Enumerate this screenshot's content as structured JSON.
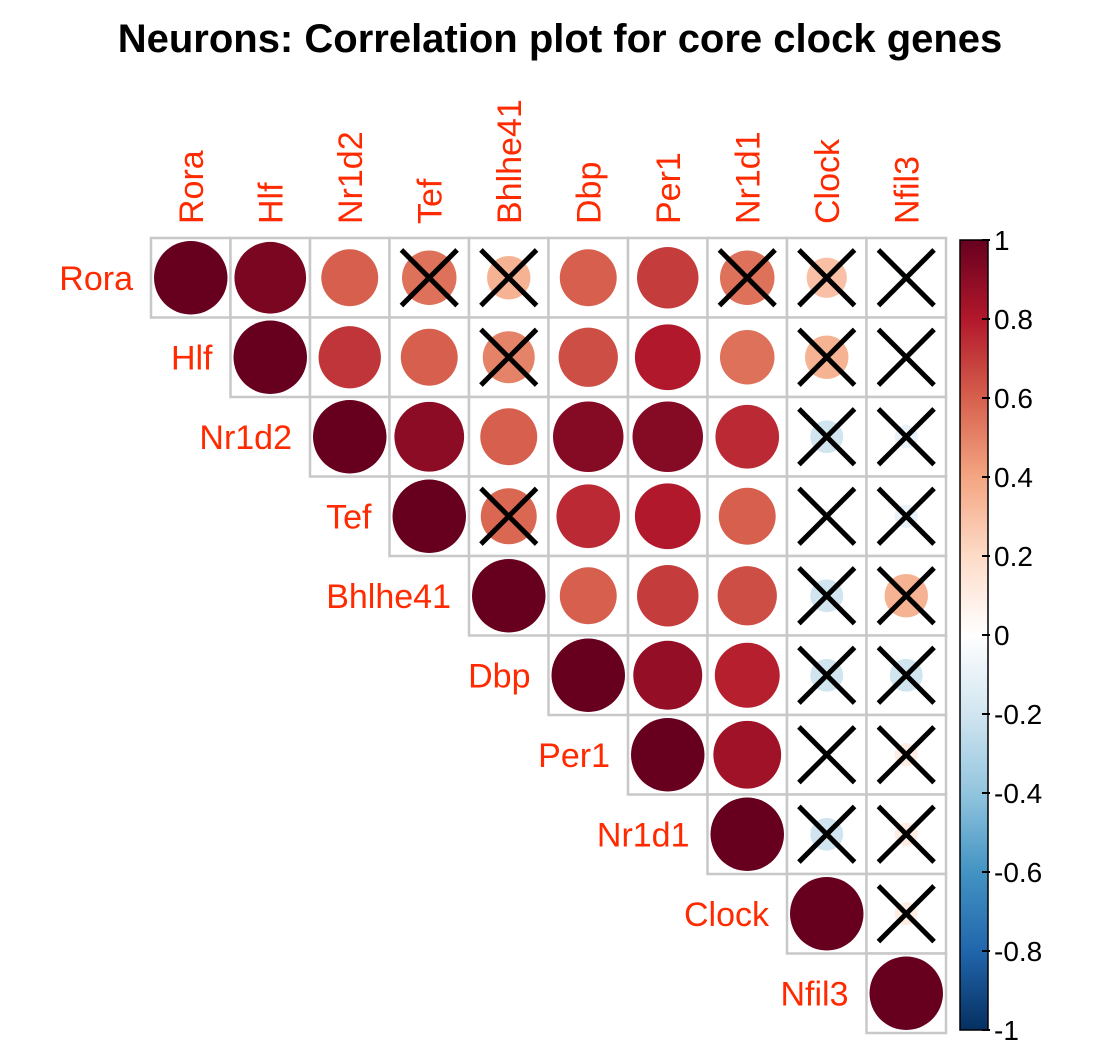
{
  "chart_data": {
    "type": "heatmap",
    "title": "Neurons: Correlation plot for core clock genes",
    "genes": [
      "Rora",
      "Hlf",
      "Nr1d2",
      "Tef",
      "Bhlhe41",
      "Dbp",
      "Per1",
      "Nr1d1",
      "Clock",
      "Nfil3"
    ],
    "matrix_shape": "upper-triangle",
    "glyph": "circle",
    "insignificant_marker": "cross",
    "label_color": "#ff2a00",
    "colorbar": {
      "range": [
        -1,
        1
      ],
      "ticks": [
        "1",
        "0.8",
        "0.6",
        "0.4",
        "0.2",
        "0",
        "-0.2",
        "-0.4",
        "-0.6",
        "-0.8",
        "-1"
      ],
      "tick_values": [
        1,
        0.8,
        0.6,
        0.4,
        0.2,
        0,
        -0.2,
        -0.4,
        -0.6,
        -0.8,
        -1
      ],
      "colors": [
        "#67001f",
        "#b2182b",
        "#d6604d",
        "#f4a582",
        "#fddbc7",
        "#ffffff",
        "#d1e5f0",
        "#92c5de",
        "#4393c3",
        "#2166ac",
        "#053061"
      ]
    },
    "cells": [
      {
        "row": "Rora",
        "col": "Rora",
        "value": 1.0,
        "crossed": false
      },
      {
        "row": "Rora",
        "col": "Hlf",
        "value": 0.95,
        "crossed": false
      },
      {
        "row": "Rora",
        "col": "Nr1d2",
        "value": 0.6,
        "crossed": false
      },
      {
        "row": "Rora",
        "col": "Tef",
        "value": 0.55,
        "crossed": true
      },
      {
        "row": "Rora",
        "col": "Bhlhe41",
        "value": 0.35,
        "crossed": true
      },
      {
        "row": "Rora",
        "col": "Dbp",
        "value": 0.6,
        "crossed": false
      },
      {
        "row": "Rora",
        "col": "Per1",
        "value": 0.7,
        "crossed": false
      },
      {
        "row": "Rora",
        "col": "Nr1d1",
        "value": 0.55,
        "crossed": true
      },
      {
        "row": "Rora",
        "col": "Clock",
        "value": 0.3,
        "crossed": true
      },
      {
        "row": "Rora",
        "col": "Nfil3",
        "value": -0.05,
        "crossed": true
      },
      {
        "row": "Hlf",
        "col": "Hlf",
        "value": 1.0,
        "crossed": false
      },
      {
        "row": "Hlf",
        "col": "Nr1d2",
        "value": 0.72,
        "crossed": false
      },
      {
        "row": "Hlf",
        "col": "Tef",
        "value": 0.6,
        "crossed": false
      },
      {
        "row": "Hlf",
        "col": "Bhlhe41",
        "value": 0.5,
        "crossed": true
      },
      {
        "row": "Hlf",
        "col": "Dbp",
        "value": 0.65,
        "crossed": false
      },
      {
        "row": "Hlf",
        "col": "Per1",
        "value": 0.8,
        "crossed": false
      },
      {
        "row": "Hlf",
        "col": "Nr1d1",
        "value": 0.55,
        "crossed": false
      },
      {
        "row": "Hlf",
        "col": "Clock",
        "value": 0.35,
        "crossed": true
      },
      {
        "row": "Hlf",
        "col": "Nfil3",
        "value": 0.0,
        "crossed": true
      },
      {
        "row": "Nr1d2",
        "col": "Nr1d2",
        "value": 1.0,
        "crossed": false
      },
      {
        "row": "Nr1d2",
        "col": "Tef",
        "value": 0.9,
        "crossed": false
      },
      {
        "row": "Nr1d2",
        "col": "Bhlhe41",
        "value": 0.6,
        "crossed": false
      },
      {
        "row": "Nr1d2",
        "col": "Dbp",
        "value": 0.92,
        "crossed": false
      },
      {
        "row": "Nr1d2",
        "col": "Per1",
        "value": 0.92,
        "crossed": false
      },
      {
        "row": "Nr1d2",
        "col": "Nr1d1",
        "value": 0.75,
        "crossed": false
      },
      {
        "row": "Nr1d2",
        "col": "Clock",
        "value": -0.2,
        "crossed": true
      },
      {
        "row": "Nr1d2",
        "col": "Nfil3",
        "value": -0.1,
        "crossed": true
      },
      {
        "row": "Tef",
        "col": "Tef",
        "value": 1.0,
        "crossed": false
      },
      {
        "row": "Tef",
        "col": "Bhlhe41",
        "value": 0.58,
        "crossed": true
      },
      {
        "row": "Tef",
        "col": "Dbp",
        "value": 0.75,
        "crossed": false
      },
      {
        "row": "Tef",
        "col": "Per1",
        "value": 0.8,
        "crossed": false
      },
      {
        "row": "Tef",
        "col": "Nr1d1",
        "value": 0.6,
        "crossed": false
      },
      {
        "row": "Tef",
        "col": "Clock",
        "value": -0.05,
        "crossed": true
      },
      {
        "row": "Tef",
        "col": "Nfil3",
        "value": -0.1,
        "crossed": true
      },
      {
        "row": "Bhlhe41",
        "col": "Bhlhe41",
        "value": 1.0,
        "crossed": false
      },
      {
        "row": "Bhlhe41",
        "col": "Dbp",
        "value": 0.6,
        "crossed": false
      },
      {
        "row": "Bhlhe41",
        "col": "Per1",
        "value": 0.7,
        "crossed": false
      },
      {
        "row": "Bhlhe41",
        "col": "Nr1d1",
        "value": 0.65,
        "crossed": false
      },
      {
        "row": "Bhlhe41",
        "col": "Clock",
        "value": -0.2,
        "crossed": true
      },
      {
        "row": "Bhlhe41",
        "col": "Nfil3",
        "value": 0.35,
        "crossed": true
      },
      {
        "row": "Dbp",
        "col": "Dbp",
        "value": 1.0,
        "crossed": false
      },
      {
        "row": "Dbp",
        "col": "Per1",
        "value": 0.88,
        "crossed": false
      },
      {
        "row": "Dbp",
        "col": "Nr1d1",
        "value": 0.78,
        "crossed": false
      },
      {
        "row": "Dbp",
        "col": "Clock",
        "value": -0.2,
        "crossed": true
      },
      {
        "row": "Dbp",
        "col": "Nfil3",
        "value": -0.2,
        "crossed": true
      },
      {
        "row": "Per1",
        "col": "Per1",
        "value": 1.0,
        "crossed": false
      },
      {
        "row": "Per1",
        "col": "Nr1d1",
        "value": 0.85,
        "crossed": false
      },
      {
        "row": "Per1",
        "col": "Clock",
        "value": 0.0,
        "crossed": true
      },
      {
        "row": "Per1",
        "col": "Nfil3",
        "value": 0.1,
        "crossed": true
      },
      {
        "row": "Nr1d1",
        "col": "Nr1d1",
        "value": 1.0,
        "crossed": false
      },
      {
        "row": "Nr1d1",
        "col": "Clock",
        "value": -0.2,
        "crossed": true
      },
      {
        "row": "Nr1d1",
        "col": "Nfil3",
        "value": 0.1,
        "crossed": true
      },
      {
        "row": "Clock",
        "col": "Clock",
        "value": 1.0,
        "crossed": false
      },
      {
        "row": "Clock",
        "col": "Nfil3",
        "value": 0.1,
        "crossed": true
      },
      {
        "row": "Nfil3",
        "col": "Nfil3",
        "value": 1.0,
        "crossed": false
      }
    ]
  }
}
